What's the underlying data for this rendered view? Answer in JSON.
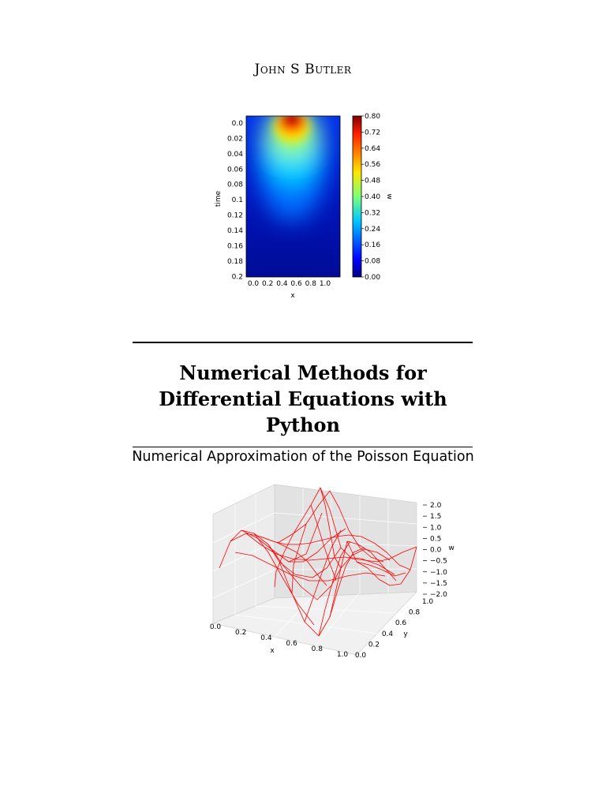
{
  "author": "John S Butler",
  "title": "Numerical Methods for Differential Equations with Python",
  "subtitle": "Numerical Approximation of the Poisson Equation",
  "chart_data": [
    {
      "type": "heatmap",
      "xlabel": "x",
      "ylabel": "time",
      "colorbar_label": "w",
      "x_ticks": [
        "0.0",
        "0.2",
        "0.4",
        "0.6",
        "0.8",
        "1.0"
      ],
      "y_ticks": [
        "0.0",
        "0.02",
        "0.04",
        "0.06",
        "0.08",
        "0.1",
        "0.12",
        "0.14",
        "0.16",
        "0.18",
        "0.2"
      ],
      "colorbar_ticks": [
        "0.80",
        "0.72",
        "0.64",
        "0.56",
        "0.48",
        "0.40",
        "0.32",
        "0.24",
        "0.16",
        "0.08",
        "0.00"
      ],
      "xlim": [
        0,
        1.1
      ],
      "ylim": [
        0,
        0.21
      ],
      "colormap": "jet",
      "vrange": [
        0,
        0.8
      ]
    },
    {
      "type": "wireframe-3d",
      "xlabel": "x",
      "ylabel": "y",
      "zlabel": "w",
      "x_ticks": [
        "0.0",
        "0.2",
        "0.4",
        "0.6",
        "0.8",
        "1.0"
      ],
      "y_ticks": [
        "0.0",
        "0.2",
        "0.4",
        "0.6",
        "0.8",
        "1.0"
      ],
      "z_ticks": [
        "2.0",
        "1.5",
        "1.0",
        "0.5",
        "0.0",
        "−0.5",
        "−1.0",
        "−1.5",
        "−2.0"
      ],
      "zlim": [
        -2,
        2
      ],
      "line_color": "#ff0000"
    }
  ]
}
